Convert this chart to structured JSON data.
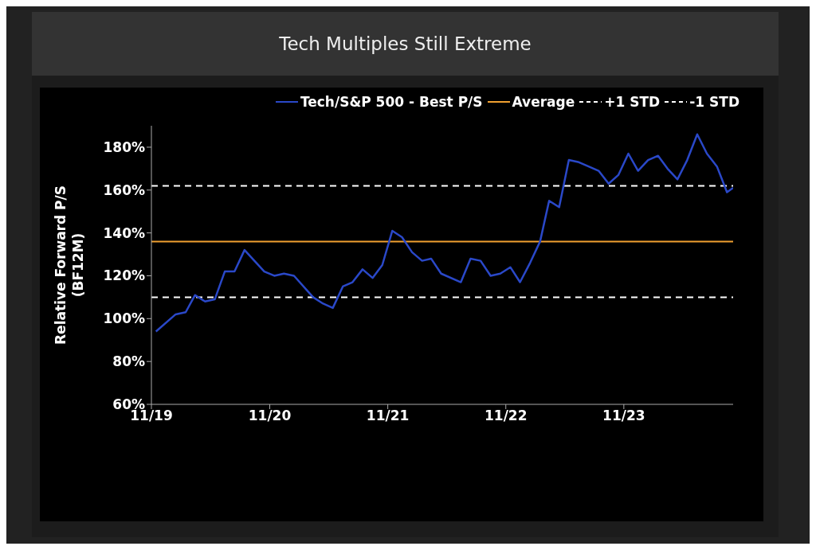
{
  "chart_data": {
    "type": "line",
    "title": "Tech Multiples Still Extreme",
    "ylabel": "Relative Forward P/S (BF12M)",
    "x": [
      "2019-11-15",
      "2020-01-15",
      "2020-02-15",
      "2020-03-15",
      "2020-04-15",
      "2020-05-15",
      "2020-06-15",
      "2020-07-15",
      "2020-08-15",
      "2020-10-15",
      "2020-11-15",
      "2020-12-15",
      "2021-01-15",
      "2021-03-15",
      "2021-04-15",
      "2021-05-15",
      "2021-06-15",
      "2021-07-15",
      "2021-08-15",
      "2021-09-15",
      "2021-10-15",
      "2021-11-15",
      "2021-12-15",
      "2022-01-15",
      "2022-02-15",
      "2022-03-15",
      "2022-04-15",
      "2022-06-15",
      "2022-07-15",
      "2022-08-15",
      "2022-09-15",
      "2022-10-15",
      "2022-11-15",
      "2022-12-15",
      "2023-01-15",
      "2023-02-15",
      "2023-03-15",
      "2023-04-15",
      "2023-05-15",
      "2023-06-15",
      "2023-07-15",
      "2023-08-15",
      "2023-09-15",
      "2023-10-15",
      "2023-11-15",
      "2023-12-15",
      "2024-01-15",
      "2024-02-15",
      "2024-03-15",
      "2024-04-15",
      "2024-05-15",
      "2024-06-15",
      "2024-07-15",
      "2024-08-15",
      "2024-09-15",
      "2024-10-04"
    ],
    "series": [
      {
        "name": "Tech/S&P 500 - Best P/S",
        "color": "#2a48c8",
        "values": [
          94,
          102,
          103,
          111,
          108,
          109,
          122,
          122,
          132,
          122,
          120,
          121,
          120,
          110,
          107,
          105,
          115,
          117,
          123,
          119,
          125,
          141,
          138,
          131,
          127,
          128,
          121,
          117,
          128,
          127,
          120,
          121,
          124,
          117,
          126,
          136,
          155,
          152,
          174,
          173,
          171,
          169,
          163,
          167,
          177,
          169,
          174,
          176,
          170,
          165,
          174,
          186,
          177,
          171,
          159,
          161
        ]
      }
    ],
    "ref_lines": [
      {
        "axis": "y",
        "value": 136,
        "label": "Average",
        "color": "#f0a030",
        "line_style": "solid"
      },
      {
        "axis": "y",
        "value": 162,
        "label": "+1 STD",
        "color": "#ffffff",
        "line_style": "dashed"
      },
      {
        "axis": "y",
        "value": 110,
        "label": "-1 STD",
        "color": "#ffffff",
        "line_style": "dashed"
      }
    ],
    "xlim": [
      "2019-11-01",
      "2024-10-04"
    ],
    "xticks": [
      {
        "value": "2019-11-01",
        "label": "11/19"
      },
      {
        "value": "2020-11-01",
        "label": "11/20"
      },
      {
        "value": "2021-11-01",
        "label": "11/21"
      },
      {
        "value": "2022-11-01",
        "label": "11/22"
      },
      {
        "value": "2023-11-01",
        "label": "11/23"
      }
    ],
    "ylim": [
      60,
      190
    ],
    "yticks": [
      {
        "value": 60,
        "label": "60%"
      },
      {
        "value": 80,
        "label": "80%"
      },
      {
        "value": 100,
        "label": "100%"
      },
      {
        "value": 120,
        "label": "120%"
      },
      {
        "value": 140,
        "label": "140%"
      },
      {
        "value": 160,
        "label": "160%"
      },
      {
        "value": 180,
        "label": "180%"
      }
    ],
    "grid": false,
    "legend": "top",
    "marker": "none",
    "line_style": "solid"
  }
}
